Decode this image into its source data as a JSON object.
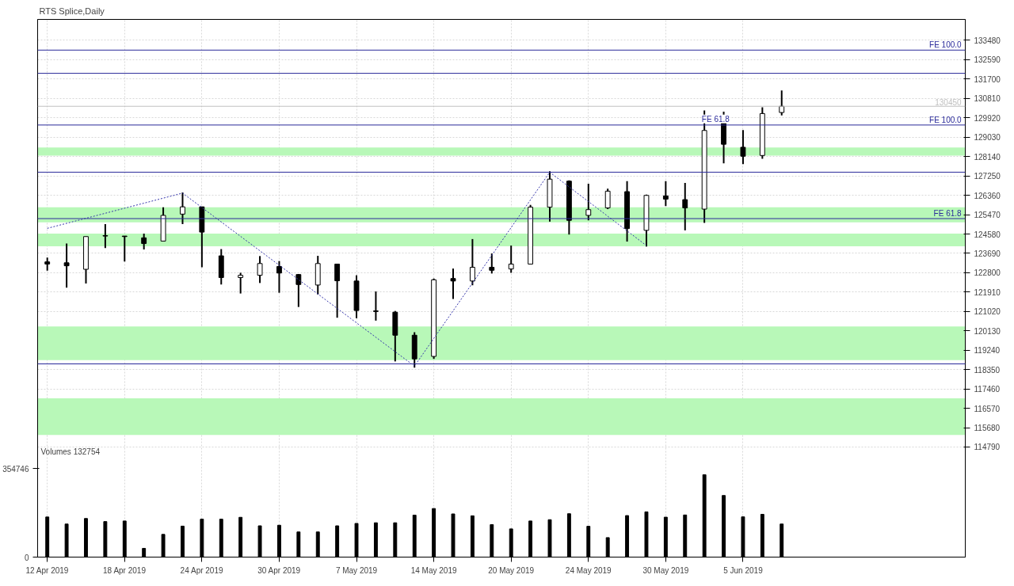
{
  "chart_data": {
    "type": "candlestick",
    "title": "RTS Splice,Daily",
    "categories": [
      "12 Apr 2019",
      null,
      null,
      null,
      "18 Apr 2019",
      null,
      null,
      null,
      "24 Apr 2019",
      null,
      null,
      null,
      "30 Apr 2019",
      null,
      null,
      null,
      "7 May 2019",
      null,
      null,
      null,
      "14 May 2019",
      null,
      null,
      null,
      "20 May 2019",
      null,
      null,
      null,
      "24 May 2019",
      null,
      null,
      null,
      "30 May 2019",
      null,
      null,
      null,
      "5 Jun 2019",
      null,
      null,
      null,
      null,
      null,
      null,
      null,
      null,
      null,
      null,
      null
    ],
    "ohlc": [
      [
        123300,
        123500,
        122900,
        123200
      ],
      [
        123257,
        124142,
        122111,
        123119
      ],
      [
        122958,
        124462,
        122304,
        124462
      ],
      [
        124486,
        125037,
        123935,
        124507
      ],
      [
        124486,
        124486,
        123316,
        124462
      ],
      [
        124404,
        124600,
        123866,
        124142
      ],
      [
        124256,
        125810,
        124256,
        125436
      ],
      [
        125495,
        126493,
        125037,
        125829
      ],
      [
        125829,
        125829,
        123051,
        124668
      ],
      [
        123577,
        123887,
        122259,
        122579
      ],
      [
        122579,
        122799,
        121846,
        122683
      ],
      [
        122683,
        123567,
        122328,
        123223
      ],
      [
        123085,
        123336,
        121880,
        122786
      ],
      [
        122717,
        122741,
        121226,
        122259
      ],
      [
        122235,
        123577,
        121803,
        123223
      ],
      [
        123198,
        123198,
        120733,
        122431
      ],
      [
        122420,
        122683,
        120710,
        121065
      ],
      [
        121044,
        121939,
        120599,
        121020
      ],
      [
        120986,
        121044,
        118724,
        119929
      ],
      [
        119929,
        120066,
        118438,
        118841
      ],
      [
        118955,
        122534,
        118841,
        122476
      ],
      [
        122534,
        122992,
        121594,
        122420
      ],
      [
        122420,
        124348,
        122224,
        123051
      ],
      [
        123051,
        123681,
        122765,
        122913
      ],
      [
        122972,
        124049,
        122799,
        123198
      ],
      [
        123198,
        125919,
        123198,
        125815
      ],
      [
        125815,
        127467,
        125150,
        127102
      ],
      [
        127010,
        127044,
        124555,
        125209
      ],
      [
        125436,
        126896,
        125209,
        125701
      ],
      [
        125780,
        126665,
        125725,
        126550
      ],
      [
        126527,
        127010,
        124232,
        124830
      ],
      [
        124748,
        126390,
        124004,
        126355
      ],
      [
        126332,
        127010,
        125863,
        126183
      ],
      [
        126159,
        126930,
        124748,
        125780
      ],
      [
        125725,
        130255,
        125092,
        129339
      ],
      [
        129683,
        130200,
        127825,
        128706
      ],
      [
        128568,
        129360,
        127790,
        128155
      ],
      [
        128190,
        130406,
        128042,
        130117
      ],
      [
        130165,
        131174,
        130028,
        130450
      ],
      null,
      null,
      null,
      null,
      null,
      null,
      null,
      null,
      null
    ],
    "series": [
      {
        "type": "line",
        "color": "#3333aa",
        "line_style": "dotted",
        "values": [
          124840,
          null,
          null,
          null,
          null,
          null,
          null,
          126460,
          null,
          null,
          null,
          null,
          null,
          null,
          null,
          null,
          null,
          null,
          null,
          118510,
          null,
          null,
          null,
          null,
          null,
          null,
          127420,
          null,
          null,
          null,
          null,
          124050,
          null,
          null,
          null,
          null,
          null,
          null,
          null,
          null,
          null,
          null,
          null,
          null,
          null,
          null,
          null,
          null
        ]
      },
      {
        "type": "bar",
        "axis": "y2",
        "color": "#000000",
        "values": [
          160900,
          132700,
          154900,
          142600,
          145000,
          35100,
          91100,
          124300,
          152200,
          152200,
          159700,
          125500,
          127900,
          101000,
          101000,
          125500,
          135100,
          137800,
          137800,
          168400,
          195000,
          173200,
          165700,
          130300,
          113200,
          145000,
          150100,
          174100,
          123700,
          78200,
          166600,
          181600,
          160300,
          169000,
          330500,
          247200,
          161500,
          171700,
          132754,
          null,
          null,
          null,
          null,
          null,
          null,
          null,
          null,
          null
        ]
      }
    ],
    "ylim": [
      109730,
      134444
    ],
    "yticks": [
      114790,
      115680,
      116570,
      117460,
      118350,
      119240,
      120130,
      121020,
      121910,
      122800,
      123690,
      124580,
      125470,
      126360,
      127250,
      128140,
      129030,
      129920,
      130810,
      131700,
      132590,
      133480
    ],
    "y2lim": [
      0,
      2158000
    ],
    "y2ticks": [
      0,
      354746
    ],
    "grid": true,
    "annotations": [
      "Volumes 132754",
      {
        "text": "FE 61.8",
        "y": 129590
      }
    ],
    "ref_lines": [
      {
        "axis": "y",
        "value": 133033,
        "label": "FE 100.0",
        "color": "#2a2a9a"
      },
      {
        "axis": "y",
        "value": 131966,
        "color": "#2a2a9a"
      },
      {
        "axis": "y",
        "value": 130450,
        "label": "130450",
        "color": "#c0c0c0"
      },
      {
        "axis": "y",
        "value": 129590,
        "label": "FE 100.0",
        "color": "#2a2a9a"
      },
      {
        "axis": "y",
        "value": 127422,
        "color": "#2a2a9a"
      },
      {
        "axis": "y",
        "value": 125288,
        "label": "FE 61.8",
        "color": "#2a2a9a"
      },
      {
        "axis": "y",
        "value": 118610,
        "color": "#2a2a9a"
      }
    ],
    "bands": [
      {
        "axis": "y",
        "from": 128180,
        "to": 128560,
        "color": "#b8f8b8"
      },
      {
        "axis": "y",
        "from": 125121,
        "to": 125805,
        "color": "#b8f8b8"
      },
      {
        "axis": "y",
        "from": 124015,
        "to": 124600,
        "color": "#b8f8b8"
      },
      {
        "axis": "y",
        "from": 118783,
        "to": 120332,
        "color": "#b8f8b8"
      },
      {
        "axis": "y",
        "from": 115341,
        "to": 117027,
        "color": "#b8f8b8"
      }
    ]
  }
}
